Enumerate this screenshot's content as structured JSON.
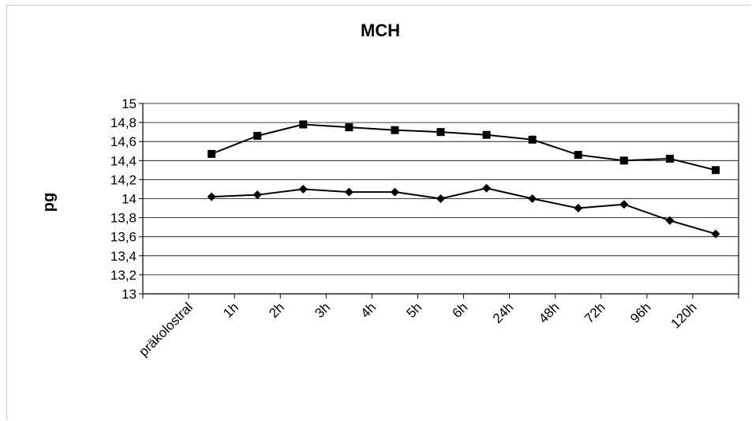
{
  "chart_data": {
    "type": "line",
    "title": "MCH",
    "xlabel": "",
    "ylabel": "pg",
    "ylim": [
      13,
      15
    ],
    "yticks": [
      "13",
      "13,2",
      "13,4",
      "13,6",
      "13,8",
      "14",
      "14,2",
      "14,4",
      "14,6",
      "14,8",
      "15"
    ],
    "categories": [
      "präkolostral",
      "1h",
      "2h",
      "3h",
      "4h",
      "5h",
      "6h",
      "24h",
      "48h",
      "72h",
      "96h",
      "120h"
    ],
    "grid": true,
    "legend": "none",
    "series": [
      {
        "marker": "square",
        "color": "#000000",
        "values": [
          14.47,
          14.66,
          14.78,
          14.75,
          14.72,
          14.7,
          14.67,
          14.62,
          14.46,
          14.4,
          14.42,
          14.3
        ]
      },
      {
        "marker": "diamond",
        "color": "#000000",
        "values": [
          14.02,
          14.04,
          14.1,
          14.07,
          14.07,
          14.0,
          14.11,
          14.0,
          13.9,
          13.94,
          13.77,
          13.63
        ]
      }
    ]
  }
}
